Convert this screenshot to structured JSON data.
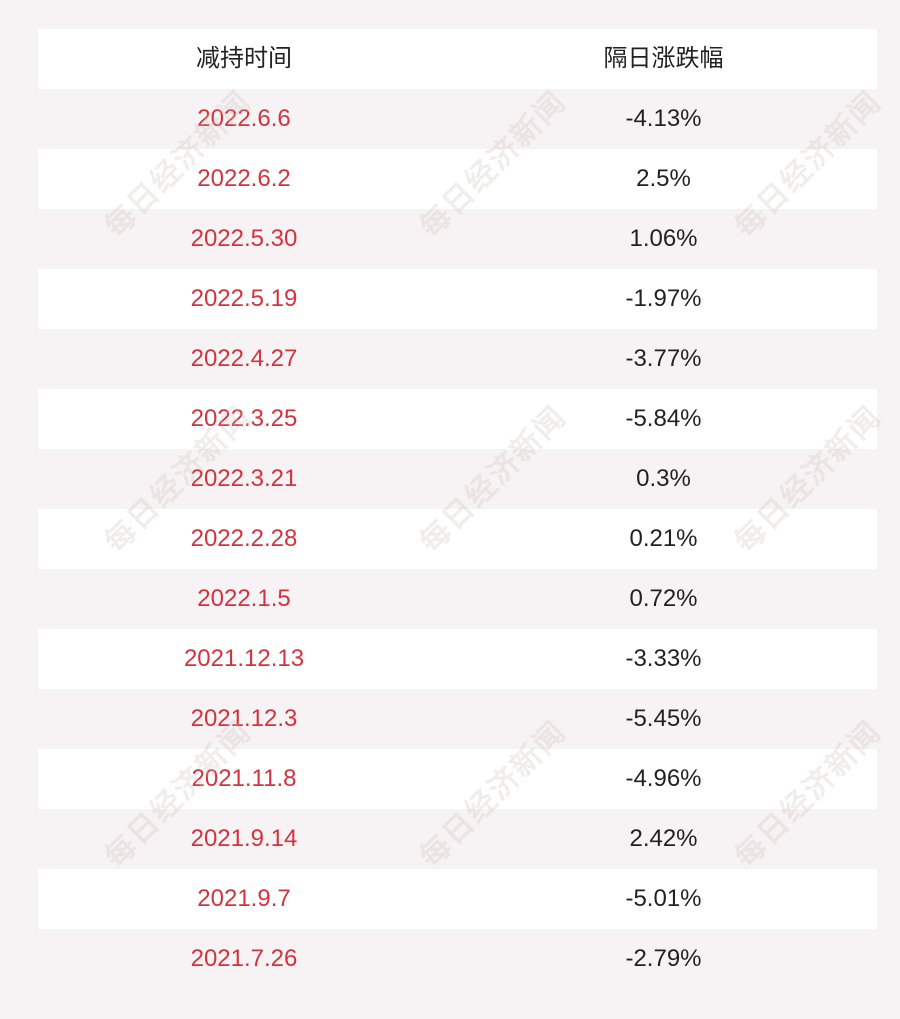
{
  "header": {
    "col_date": "减持时间",
    "col_change": "隔日涨跌幅"
  },
  "rows": [
    {
      "date": "2022.6.6",
      "change": "-4.13%"
    },
    {
      "date": "2022.6.2",
      "change": "2.5%"
    },
    {
      "date": "2022.5.30",
      "change": "1.06%"
    },
    {
      "date": "2022.5.19",
      "change": "-1.97%"
    },
    {
      "date": "2022.4.27",
      "change": "-3.77%"
    },
    {
      "date": "2022.3.25",
      "change": "-5.84%"
    },
    {
      "date": "2022.3.21",
      "change": "0.3%"
    },
    {
      "date": "2022.2.28",
      "change": "0.21%"
    },
    {
      "date": "2022.1.5",
      "change": "0.72%"
    },
    {
      "date": "2021.12.13",
      "change": "-3.33%"
    },
    {
      "date": "2021.12.3",
      "change": "-5.45%"
    },
    {
      "date": "2021.11.8",
      "change": "-4.96%"
    },
    {
      "date": "2021.9.14",
      "change": "2.42%"
    },
    {
      "date": "2021.9.7",
      "change": "-5.01%"
    },
    {
      "date": "2021.7.26",
      "change": "-2.79%"
    }
  ],
  "watermark": "每日经济新闻",
  "colors": {
    "date_text": "#d1343f",
    "value_text": "#222222",
    "background": "#f7f3f4",
    "stripe": "#ffffff"
  }
}
